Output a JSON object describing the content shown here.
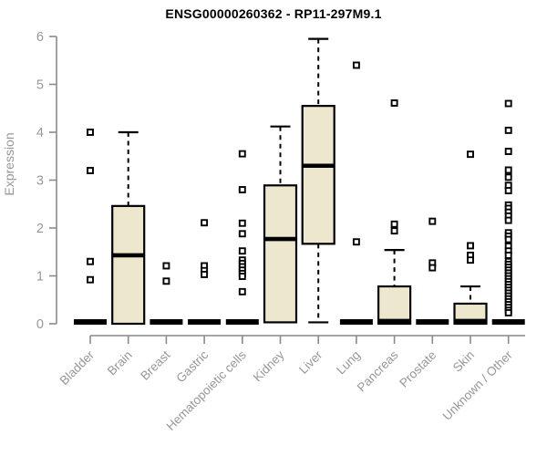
{
  "chart_data": {
    "type": "boxplot",
    "title": "ENSG00000260362 - RP11-297M9.1",
    "ylabel": "Expression",
    "ylim": [
      0,
      6
    ],
    "yticks": [
      0,
      1,
      2,
      3,
      4,
      5,
      6
    ],
    "grid": false,
    "legend": false,
    "colors": {
      "box_fill": "#EDE8CD",
      "box_stroke": "#000000",
      "median": "#000000",
      "outlier_fill": "#FFFFFF",
      "outlier_stroke": "#000000",
      "axis": "#8A8A8A",
      "tick_label": "#979797"
    },
    "categories": [
      "Bladder",
      "Brain",
      "Breast",
      "Gastric",
      "Hematopoietic cells",
      "Kidney",
      "Liver",
      "Lung",
      "Pancreas",
      "Prostate",
      "Skin",
      "Unknown / Other"
    ],
    "boxes": [
      {
        "category": "Bladder",
        "q1": 0,
        "median": 0,
        "q3": 0,
        "whisker_low": 0,
        "whisker_high": 0,
        "outliers": [
          4.0,
          3.2,
          1.3,
          0.92
        ]
      },
      {
        "category": "Brain",
        "q1": 0,
        "median": 1.43,
        "q3": 2.46,
        "whisker_low": 0,
        "whisker_high": 4.0,
        "outliers": []
      },
      {
        "category": "Breast",
        "q1": 0,
        "median": 0,
        "q3": 0,
        "whisker_low": 0,
        "whisker_high": 0,
        "outliers": [
          1.21,
          0.89
        ]
      },
      {
        "category": "Gastric",
        "q1": 0,
        "median": 0,
        "q3": 0,
        "whisker_low": 0,
        "whisker_high": 0,
        "outliers": [
          2.11,
          1.21,
          1.11,
          1.03
        ]
      },
      {
        "category": "Hematopoietic cells",
        "q1": 0,
        "median": 0,
        "q3": 0,
        "whisker_low": 0,
        "whisker_high": 0,
        "outliers": [
          3.55,
          2.8,
          2.1,
          1.88,
          1.52,
          1.33,
          1.26,
          1.19,
          1.12,
          1.05,
          0.99,
          0.67
        ]
      },
      {
        "category": "Kidney",
        "q1": 0.03,
        "median": 1.77,
        "q3": 2.89,
        "whisker_low": 0.03,
        "whisker_high": 4.12,
        "outliers": []
      },
      {
        "category": "Liver",
        "q1": 1.67,
        "median": 3.3,
        "q3": 4.55,
        "whisker_low": 0.03,
        "whisker_high": 5.95,
        "outliers": []
      },
      {
        "category": "Lung",
        "q1": 0,
        "median": 0,
        "q3": 0,
        "whisker_low": 0,
        "whisker_high": 0,
        "outliers": [
          5.4,
          1.71
        ]
      },
      {
        "category": "Pancreas",
        "q1": 0,
        "median": 0.02,
        "q3": 0.78,
        "whisker_low": 0,
        "whisker_high": 1.54,
        "outliers": [
          4.61,
          2.08,
          1.94
        ]
      },
      {
        "category": "Prostate",
        "q1": 0,
        "median": 0,
        "q3": 0,
        "whisker_low": 0,
        "whisker_high": 0,
        "outliers": [
          2.14,
          1.27,
          1.17
        ]
      },
      {
        "category": "Skin",
        "q1": 0,
        "median": 0.02,
        "q3": 0.42,
        "whisker_low": 0,
        "whisker_high": 0.78,
        "outliers": [
          3.54,
          1.63,
          1.43,
          1.33
        ]
      },
      {
        "category": "Unknown / Other",
        "q1": 0,
        "median": 0,
        "q3": 0,
        "whisker_low": 0,
        "whisker_high": 0,
        "outliers": [
          4.6,
          4.04,
          3.6,
          3.21,
          3.06,
          2.89,
          2.78,
          2.48,
          2.41,
          2.33,
          2.25,
          2.16,
          1.9,
          1.83,
          1.76,
          1.62,
          1.52,
          1.43,
          1.3,
          1.24,
          1.18,
          1.12,
          1.06,
          1.0,
          0.94,
          0.88,
          0.82,
          0.76,
          0.7,
          0.64,
          0.58,
          0.52,
          0.46,
          0.4,
          0.34,
          0.28,
          0.23
        ]
      }
    ]
  }
}
